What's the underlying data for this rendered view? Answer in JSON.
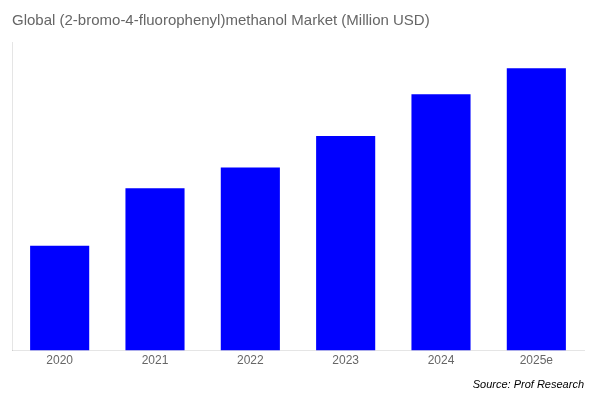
{
  "chart_data": {
    "type": "bar",
    "title": "Global (2-bromo-4-fluorophenyl)methanol Market (Million USD)",
    "categories": [
      "2020",
      "2021",
      "2022",
      "2023",
      "2024",
      "2025e"
    ],
    "values": [
      1.0,
      1.55,
      1.75,
      2.05,
      2.45,
      2.7
    ],
    "color": "#0000FF",
    "ylim": [
      0.0,
      2.95
    ],
    "grid": false,
    "tick_labels": "x",
    "annotations": [
      "Source: Prof Research"
    ]
  }
}
